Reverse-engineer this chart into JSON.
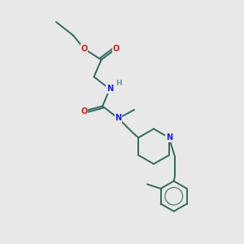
{
  "background_color": "#e8e8e8",
  "bond_color": "#2d6b5e",
  "atom_colors": {
    "N": "#1a1aee",
    "O": "#cc1a1a",
    "H": "#6a9a9a",
    "C": "#2d6b5e"
  },
  "figsize": [
    3.0,
    3.0
  ],
  "dpi": 100
}
